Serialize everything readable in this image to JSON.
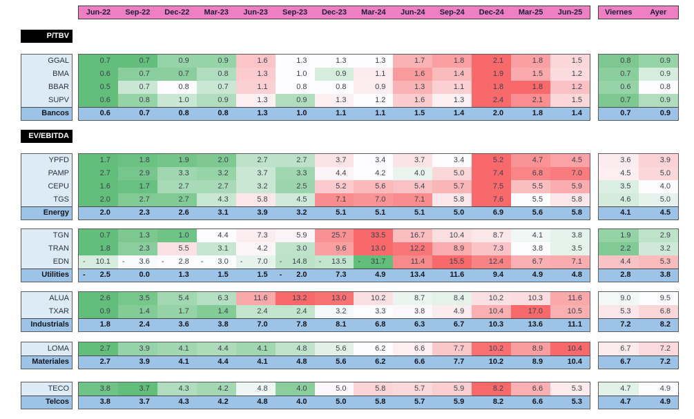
{
  "title": "Valuation multiples heatmap table",
  "colors": {
    "header_pink": "#EE7FC3",
    "label_light_blue": "#DDEBF7",
    "total_blue": "#9DC3E6",
    "heat_green": "#63BE7B",
    "heat_neutral": "#FCFCFF",
    "heat_red": "#F8696B",
    "section_title_bg": "#000000",
    "section_title_text": "#ffffff"
  },
  "chart_data": {
    "type": "heatmap",
    "legend_note": "per-row 3-color scale: min=green, median=white, max=red",
    "columns": [
      "Jun-22",
      "Sep-22",
      "Dec-22",
      "Mar-23",
      "Jun-23",
      "Sep-23",
      "Dec-23",
      "Mar-24",
      "Jun-24",
      "Sep-24",
      "Dec-24",
      "Mar-25",
      "Jun-25"
    ],
    "extra_columns": [
      "Viernes",
      "Ayer"
    ],
    "sections": [
      {
        "title": "P/TBV",
        "groups": [
          {
            "rows": [
              {
                "label": "GGAL",
                "values": [
                  0.7,
                  0.7,
                  0.9,
                  0.9,
                  1.6,
                  1.3,
                  1.3,
                  1.3,
                  1.7,
                  1.8,
                  2.1,
                  1.8,
                  1.5
                ],
                "extra": [
                  0.8,
                  0.9
                ]
              },
              {
                "label": "BMA",
                "values": [
                  0.6,
                  0.7,
                  0.7,
                  0.8,
                  1.3,
                  1.0,
                  0.9,
                  1.1,
                  1.6,
                  1.4,
                  1.9,
                  1.5,
                  1.2
                ],
                "extra": [
                  0.7,
                  0.9
                ]
              },
              {
                "label": "BBAR",
                "values": [
                  0.5,
                  0.7,
                  0.8,
                  0.7,
                  1.1,
                  0.8,
                  0.8,
                  0.9,
                  1.3,
                  1.1,
                  1.8,
                  1.8,
                  1.2
                ],
                "extra": [
                  0.6,
                  0.8
                ]
              },
              {
                "label": "SUPV",
                "values": [
                  0.6,
                  0.8,
                  1.0,
                  0.9,
                  1.3,
                  0.9,
                  1.3,
                  1.2,
                  1.6,
                  1.3,
                  2.4,
                  2.1,
                  1.5
                ],
                "extra": [
                  0.7,
                  0.9
                ]
              }
            ],
            "total": {
              "label": "Bancos",
              "values": [
                0.6,
                0.7,
                0.8,
                0.8,
                1.3,
                1.0,
                1.1,
                1.1,
                1.5,
                1.4,
                2.0,
                1.8,
                1.4
              ],
              "extra": [
                0.7,
                0.9
              ]
            }
          }
        ]
      },
      {
        "title": "EV/EBITDA",
        "groups": [
          {
            "rows": [
              {
                "label": "YPFD",
                "values": [
                  1.7,
                  1.8,
                  1.9,
                  2.0,
                  2.7,
                  2.7,
                  3.7,
                  3.4,
                  3.7,
                  3.4,
                  5.2,
                  4.7,
                  4.5
                ],
                "extra": [
                  3.6,
                  3.9
                ]
              },
              {
                "label": "PAMP",
                "values": [
                  2.7,
                  2.9,
                  3.3,
                  3.2,
                  3.7,
                  3.3,
                  4.4,
                  4.2,
                  4.0,
                  5.0,
                  7.4,
                  6.8,
                  7.0
                ],
                "extra": [
                  4.5,
                  5.0
                ]
              },
              {
                "label": "CEPU",
                "values": [
                  1.6,
                  1.7,
                  2.7,
                  2.7,
                  3.2,
                  2.5,
                  5.2,
                  5.6,
                  5.4,
                  5.7,
                  7.5,
                  5.5,
                  5.9
                ],
                "extra": [
                  3.5,
                  4.0
                ]
              },
              {
                "label": "TGS",
                "values": [
                  2.0,
                  2.7,
                  2.7,
                  4.3,
                  5.8,
                  4.5,
                  7.1,
                  7.0,
                  7.1,
                  5.8,
                  7.6,
                  5.5,
                  5.8
                ],
                "extra": [
                  4.6,
                  5.0
                ]
              }
            ],
            "total": {
              "label": "Energy",
              "values": [
                2.0,
                2.3,
                2.6,
                3.1,
                3.9,
                3.2,
                5.1,
                5.1,
                5.1,
                5.0,
                6.9,
                5.6,
                5.8
              ],
              "extra": [
                4.1,
                4.5
              ]
            }
          },
          {
            "rows": [
              {
                "label": "TGN",
                "values": [
                  0.7,
                  1.3,
                  1.0,
                  4.4,
                  7.3,
                  5.9,
                  25.7,
                  33.5,
                  16.7,
                  10.4,
                  8.7,
                  4.1,
                  3.8
                ],
                "extra": [
                  1.9,
                  2.9
                ]
              },
              {
                "label": "TRAN",
                "values": [
                  1.8,
                  2.3,
                  5.5,
                  3.1,
                  4.2,
                  3.0,
                  9.6,
                  13.0,
                  12.2,
                  8.9,
                  7.3,
                  3.8,
                  3.5
                ],
                "extra": [
                  2.2,
                  3.2
                ]
              },
              {
                "label": "EDN",
                "values": [
                  -10.1,
                  -3.6,
                  -2.8,
                  -3.0,
                  -7.0,
                  -14.8,
                  -13.5,
                  -31.7,
                  11.4,
                  15.5,
                  12.4,
                  6.7,
                  7.1
                ],
                "extra": [
                  4.4,
                  5.3
                ]
              }
            ],
            "total": {
              "label": "Utilities",
              "values": [
                -2.5,
                0.0,
                1.3,
                1.5,
                1.5,
                -2.0,
                7.3,
                4.9,
                13.4,
                11.6,
                9.4,
                4.9,
                4.8
              ],
              "extra": [
                2.8,
                3.8
              ]
            }
          },
          {
            "rows": [
              {
                "label": "ALUA",
                "values": [
                  2.6,
                  3.5,
                  5.4,
                  6.3,
                  11.6,
                  13.2,
                  13.0,
                  10.2,
                  8.7,
                  8.4,
                  10.2,
                  10.3,
                  11.6
                ],
                "extra": [
                  9.0,
                  9.5
                ]
              },
              {
                "label": "TXAR",
                "values": [
                  0.9,
                  1.4,
                  1.7,
                  1.4,
                  2.4,
                  2.4,
                  3.2,
                  3.3,
                  3.8,
                  4.9,
                  10.4,
                  17.0,
                  10.5
                ],
                "extra": [
                  5.3,
                  6.8
                ]
              }
            ],
            "total": {
              "label": "Industrials",
              "values": [
                1.8,
                2.4,
                3.6,
                3.8,
                7.0,
                7.8,
                8.1,
                6.8,
                6.3,
                6.7,
                10.3,
                13.6,
                11.1
              ],
              "extra": [
                7.2,
                8.2
              ]
            }
          },
          {
            "rows": [
              {
                "label": "LOMA",
                "values": [
                  2.7,
                  3.9,
                  4.1,
                  4.4,
                  4.1,
                  4.8,
                  5.6,
                  6.2,
                  6.6,
                  7.7,
                  10.2,
                  8.9,
                  10.4
                ],
                "extra": [
                  6.7,
                  7.2
                ]
              }
            ],
            "total": {
              "label": "Materiales",
              "values": [
                2.7,
                3.9,
                4.1,
                4.4,
                4.1,
                4.8,
                5.6,
                6.2,
                6.6,
                7.7,
                10.2,
                8.9,
                10.4
              ],
              "extra": [
                6.7,
                7.2
              ]
            }
          },
          {
            "rows": [
              {
                "label": "TECO",
                "values": [
                  3.8,
                  3.7,
                  4.3,
                  4.2,
                  4.8,
                  4.0,
                  5.0,
                  5.8,
                  5.7,
                  5.9,
                  8.2,
                  6.6,
                  5.3
                ],
                "extra": [
                  4.7,
                  4.9
                ]
              }
            ],
            "total": {
              "label": "Telcos",
              "values": [
                3.8,
                3.7,
                4.3,
                4.2,
                4.8,
                4.0,
                5.0,
                5.8,
                5.7,
                5.9,
                8.2,
                6.6,
                5.3
              ],
              "extra": [
                4.7,
                4.9
              ]
            }
          }
        ]
      }
    ]
  }
}
